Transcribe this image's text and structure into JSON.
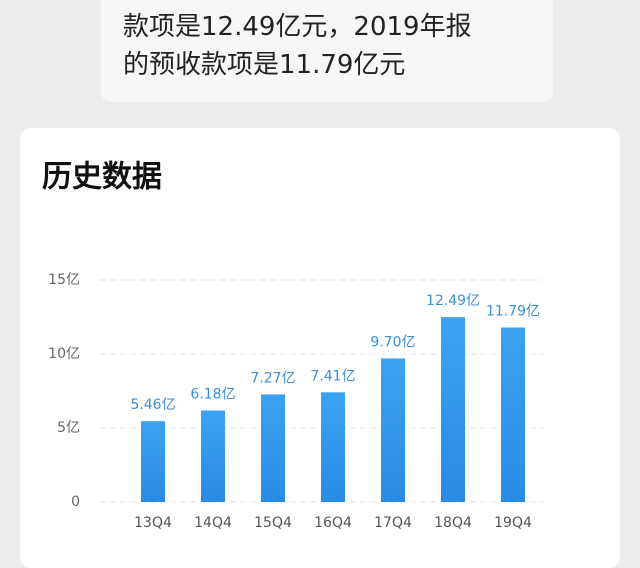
{
  "bubble": {
    "lines": [
      "款项是12.49亿元，2019年报",
      "的预收款项是11.79亿元"
    ]
  },
  "chart_data": {
    "type": "bar",
    "title": "历史数据",
    "categories": [
      "13Q4",
      "14Q4",
      "15Q4",
      "16Q4",
      "17Q4",
      "18Q4",
      "19Q4"
    ],
    "values": [
      5.46,
      6.18,
      7.27,
      7.41,
      9.7,
      12.49,
      11.79
    ],
    "value_labels": [
      "5.46亿",
      "6.18亿",
      "7.27亿",
      "7.41亿",
      "9.70亿",
      "12.49亿",
      "11.79亿"
    ],
    "color": "#2f95ec",
    "ylim": [
      0,
      15
    ],
    "yticks": [
      0,
      {
        "value": 5,
        "label": "5亿"
      },
      {
        "value": 10,
        "label": "10亿"
      },
      {
        "value": 15,
        "label": "15亿"
      }
    ],
    "grid": true
  }
}
